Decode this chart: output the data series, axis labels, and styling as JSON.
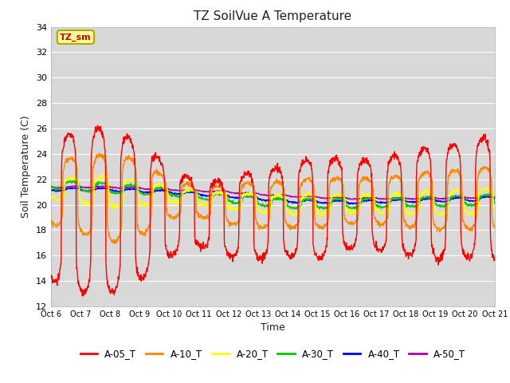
{
  "title": "TZ SoilVue A Temperature",
  "xlabel": "Time",
  "ylabel": "Soil Temperature (C)",
  "ylim": [
    12,
    34
  ],
  "yticks": [
    12,
    14,
    16,
    18,
    20,
    22,
    24,
    26,
    28,
    30,
    32,
    34
  ],
  "background_color": "#ffffff",
  "plot_bg_color": "#d8d8d8",
  "grid_color": "#ffffff",
  "series_colors": {
    "A-05_T": "#ff0000",
    "A-10_T": "#ff8800",
    "A-20_T": "#ffff00",
    "A-30_T": "#00cc00",
    "A-40_T": "#0000ff",
    "A-50_T": "#aa00aa"
  },
  "annotation_label": "TZ_sm",
  "annotation_color": "#cc0000",
  "annotation_bg": "#ffff99",
  "annotation_border": "#aaaa00",
  "x_start": 6,
  "x_end": 21,
  "xtick_positions": [
    6,
    7,
    8,
    9,
    10,
    11,
    12,
    13,
    14,
    15,
    16,
    17,
    18,
    19,
    20,
    21
  ],
  "xtick_labels": [
    "Oct 6",
    "Oct 7",
    "Oct 8",
    "Oct 9",
    "Oct 10",
    "Oct 11",
    "Oct 12",
    "Oct 13",
    "Oct 14",
    "Oct 15",
    "Oct 16",
    "Oct 17",
    "Oct 18",
    "Oct 19",
    "Oct 20",
    "Oct 21"
  ]
}
